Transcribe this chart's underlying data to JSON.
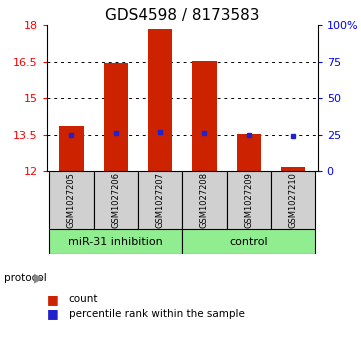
{
  "title": "GDS4598 / 8173583",
  "samples": [
    "GSM1027205",
    "GSM1027206",
    "GSM1027207",
    "GSM1027208",
    "GSM1027209",
    "GSM1027210"
  ],
  "group_labels": [
    "miR-31 inhibition",
    "control"
  ],
  "bar_tops": [
    13.85,
    16.47,
    17.87,
    16.52,
    13.52,
    12.15
  ],
  "bar_bottom": 12.0,
  "percentile_values": [
    13.47,
    13.58,
    13.62,
    13.57,
    13.47,
    13.42
  ],
  "ylim_left": [
    12,
    18
  ],
  "ylim_right": [
    0,
    100
  ],
  "yticks_left": [
    12,
    13.5,
    15,
    16.5,
    18
  ],
  "ytick_labels_left": [
    "12",
    "13.5",
    "15",
    "16.5",
    "18"
  ],
  "yticks_right": [
    0,
    25,
    50,
    75,
    100
  ],
  "ytick_labels_right": [
    "0",
    "25",
    "50",
    "75",
    "100%"
  ],
  "grid_values": [
    13.5,
    15,
    16.5
  ],
  "bar_color": "#CC2200",
  "percentile_color": "#2222CC",
  "bar_width": 0.55,
  "title_fontsize": 11,
  "tick_fontsize": 8,
  "sample_fontsize": 6,
  "group_fontsize": 8,
  "legend_fontsize": 7.5,
  "sample_box_color": "#D0D0D0",
  "group_box_color": "#90EE90",
  "n_inhibition": 3,
  "n_control": 3
}
